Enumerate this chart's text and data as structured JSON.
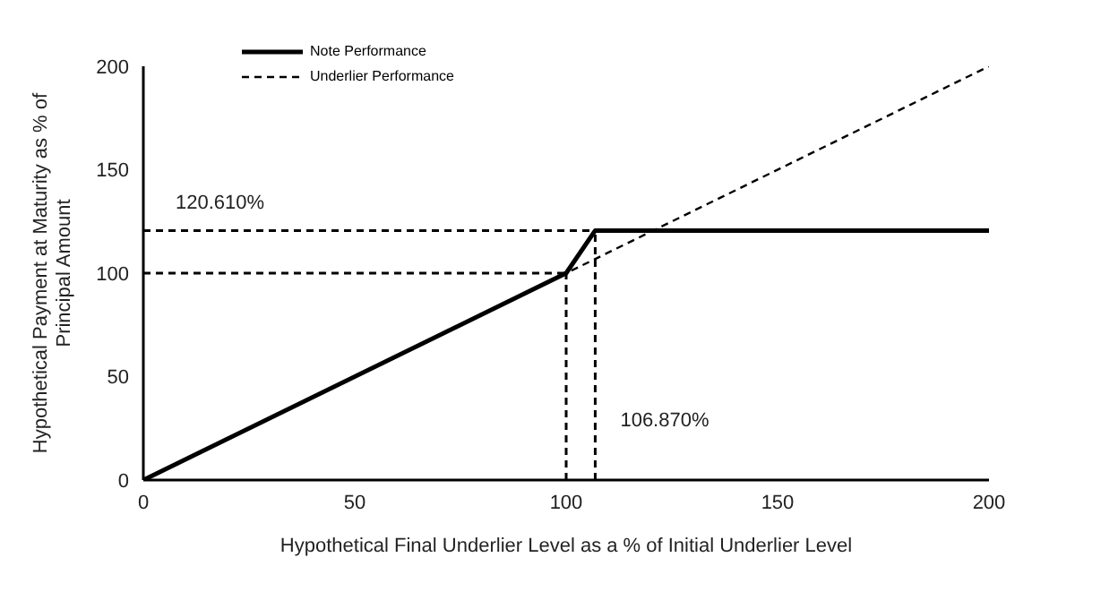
{
  "chart_data": {
    "type": "line",
    "xlabel": "Hypothetical Final Underlier Level as a % of Initial Underlier Level",
    "ylabel": "Hypothetical Payment at Maturity as % of Principal Amount",
    "series": [
      {
        "name": "Note Performance",
        "color": "#000000",
        "line_style": "solid",
        "x": [
          0,
          100,
          106.87,
          200
        ],
        "values": [
          0,
          100,
          120.61,
          120.61
        ]
      },
      {
        "name": "Underlier Performance",
        "color": "#000000",
        "line_style": "dashed",
        "x": [
          0,
          200
        ],
        "values": [
          0,
          200
        ]
      }
    ],
    "xlim": [
      0,
      200
    ],
    "xticks": [
      0,
      50,
      100,
      150,
      200
    ],
    "ylim": [
      0,
      200
    ],
    "yticks": [
      0,
      50,
      100,
      150,
      200
    ],
    "ref_lines": [
      {
        "axis": "y",
        "value": 120.61,
        "label": "120.610%",
        "line_style": "dashed",
        "color": "#000000"
      },
      {
        "axis": "y",
        "value": 100,
        "line_style": "dashed",
        "color": "#000000"
      },
      {
        "axis": "x",
        "value": 100,
        "line_style": "dashed",
        "color": "#000000"
      },
      {
        "axis": "x",
        "value": 106.87,
        "label": "106.870%",
        "line_style": "dashed",
        "color": "#000000"
      }
    ],
    "grid": false,
    "legend": "top left",
    "marker": "none"
  }
}
